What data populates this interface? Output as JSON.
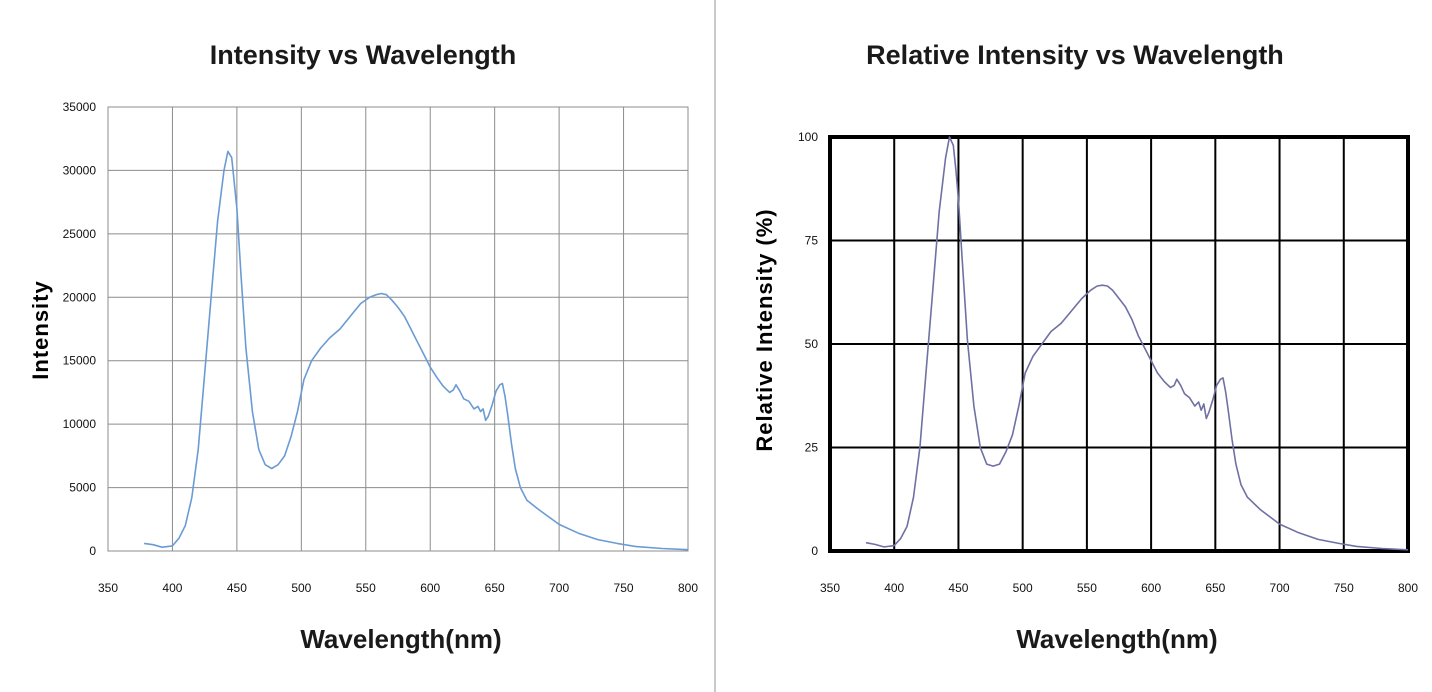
{
  "chart_data": [
    {
      "type": "line",
      "title": "Intensity vs Wavelength",
      "xlabel": "Wavelength(nm)",
      "ylabel": "Intensity",
      "xlim": [
        350,
        800
      ],
      "ylim": [
        0,
        35000
      ],
      "xticks": [
        "350",
        "400",
        "450",
        "500",
        "550",
        "600",
        "650",
        "700",
        "750",
        "800"
      ],
      "yticks": [
        "0",
        "5000",
        "10000",
        "15000",
        "20000",
        "25000",
        "30000",
        "35000"
      ],
      "grid": true,
      "line_color": "#6a9bd4",
      "series": [
        {
          "x": [
            378,
            385,
            392,
            400,
            405,
            410,
            415,
            420,
            425,
            430,
            435,
            440,
            443,
            446,
            448,
            450,
            453,
            457,
            462,
            467,
            472,
            477,
            482,
            487,
            492,
            497,
            502,
            508,
            515,
            522,
            530,
            538,
            546,
            553,
            558,
            562,
            566,
            570,
            575,
            580,
            585,
            590,
            595,
            600,
            605,
            610,
            615,
            618,
            620,
            623,
            626,
            630,
            634,
            637,
            639,
            641,
            643,
            645,
            648,
            651,
            654,
            656,
            658,
            660,
            663,
            666,
            670,
            675,
            685,
            700,
            715,
            730,
            745,
            760,
            780,
            800
          ],
          "y": [
            600,
            500,
            300,
            400,
            1000,
            2000,
            4200,
            8000,
            14000,
            20000,
            26000,
            30000,
            31500,
            31000,
            29000,
            27000,
            22000,
            16000,
            11000,
            8000,
            6800,
            6500,
            6800,
            7500,
            9000,
            11000,
            13500,
            15000,
            16000,
            16800,
            17500,
            18500,
            19500,
            20000,
            20200,
            20300,
            20200,
            19800,
            19200,
            18500,
            17500,
            16500,
            15500,
            14500,
            13700,
            13000,
            12500,
            12700,
            13100,
            12600,
            12000,
            11800,
            11200,
            11400,
            11000,
            11200,
            10300,
            10600,
            11500,
            12600,
            13100,
            13200,
            12200,
            10800,
            8500,
            6500,
            5000,
            4000,
            3200,
            2100,
            1400,
            900,
            600,
            350,
            200,
            100
          ]
        }
      ]
    },
    {
      "type": "line",
      "title": "Relative Intensity vs Wavelength",
      "xlabel": "Wavelength(nm)",
      "ylabel": "Relative Intensity (%)",
      "xlim": [
        350,
        800
      ],
      "ylim": [
        0,
        100
      ],
      "xticks": [
        "350",
        "400",
        "450",
        "500",
        "550",
        "600",
        "650",
        "700",
        "750",
        "800"
      ],
      "yticks": [
        "0",
        "25",
        "50",
        "75",
        "100"
      ],
      "grid": true,
      "line_color": "#6f70a3",
      "series": [
        {
          "x": [
            378,
            385,
            392,
            400,
            405,
            410,
            415,
            420,
            425,
            430,
            435,
            440,
            443,
            446,
            448,
            450,
            453,
            457,
            462,
            467,
            472,
            477,
            482,
            487,
            492,
            497,
            502,
            508,
            515,
            522,
            530,
            538,
            546,
            553,
            558,
            562,
            566,
            570,
            575,
            580,
            585,
            590,
            595,
            600,
            605,
            610,
            615,
            618,
            620,
            623,
            626,
            630,
            634,
            637,
            639,
            641,
            643,
            645,
            648,
            651,
            654,
            656,
            658,
            660,
            663,
            666,
            670,
            675,
            685,
            700,
            715,
            730,
            745,
            760,
            780,
            800
          ],
          "y": [
            2,
            1.6,
            1,
            1.3,
            3,
            6,
            13,
            25,
            44,
            63,
            82,
            95,
            100,
            98,
            92,
            85,
            70,
            51,
            35,
            25,
            21,
            20.5,
            21,
            24,
            28,
            35,
            43,
            47,
            50,
            53,
            55,
            58,
            61,
            63,
            64,
            64.2,
            64,
            63,
            61,
            59,
            56,
            52,
            49,
            46,
            43,
            41,
            39.5,
            40,
            41.5,
            40,
            38,
            37,
            35,
            36,
            34,
            35.5,
            32,
            33.5,
            36.5,
            40,
            41.5,
            41.8,
            38.5,
            34,
            27,
            21,
            16,
            13,
            10,
            6.5,
            4.4,
            2.8,
            1.9,
            1.1,
            0.6,
            0.3
          ]
        }
      ]
    }
  ]
}
